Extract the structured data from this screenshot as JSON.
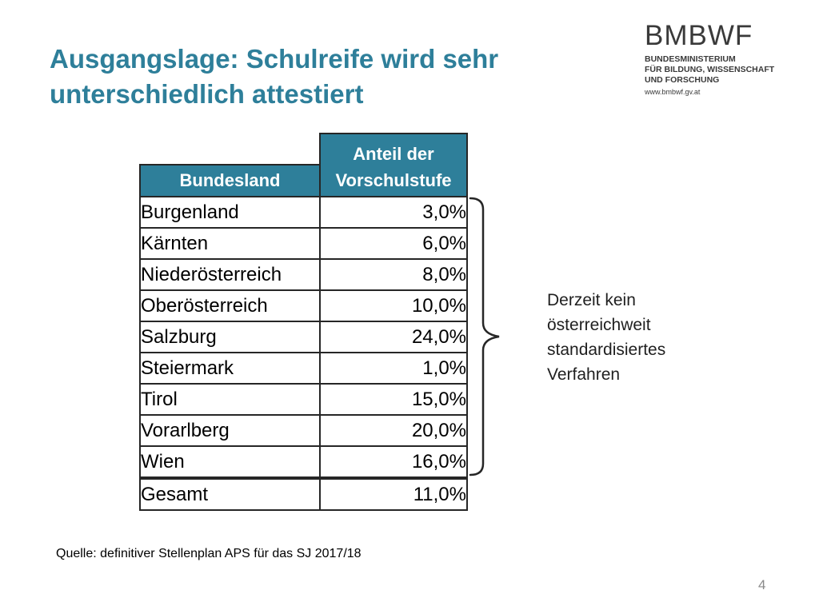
{
  "title": "Ausgangslage: Schulreife wird sehr unterschiedlich attestiert",
  "logo": {
    "wordmark": "BMBWF",
    "line1": "BUNDESMINISTERIUM",
    "line2": "FÜR BILDUNG, WISSENSCHAFT",
    "line3": "UND FORSCHUNG",
    "url": "www.bmbwf.gv.at"
  },
  "table": {
    "header_region": "Bundesland",
    "header_share_line1": "Anteil der",
    "header_share_line2": "Vorschulstufe",
    "rows": [
      {
        "name": "Burgenland",
        "value": "3,0%"
      },
      {
        "name": "Kärnten",
        "value": "6,0%"
      },
      {
        "name": "Niederösterreich",
        "value": "8,0%"
      },
      {
        "name": "Oberösterreich",
        "value": "10,0%"
      },
      {
        "name": "Salzburg",
        "value": "24,0%"
      },
      {
        "name": "Steiermark",
        "value": "1,0%"
      },
      {
        "name": "Tirol",
        "value": "15,0%"
      },
      {
        "name": "Vorarlberg",
        "value": "20,0%"
      },
      {
        "name": "Wien",
        "value": "16,0%"
      }
    ],
    "total": {
      "name": "Gesamt",
      "value": "11,0%"
    }
  },
  "annotation": {
    "line1": "Derzeit kein",
    "line2": "österreichweit",
    "line3": "standardisiertes",
    "line4": "Verfahren"
  },
  "source": "Quelle: definitiver Stellenplan APS für das SJ 2017/18",
  "page_number": "4",
  "colors": {
    "accent": "#2E7F9A",
    "border": "#262626"
  }
}
